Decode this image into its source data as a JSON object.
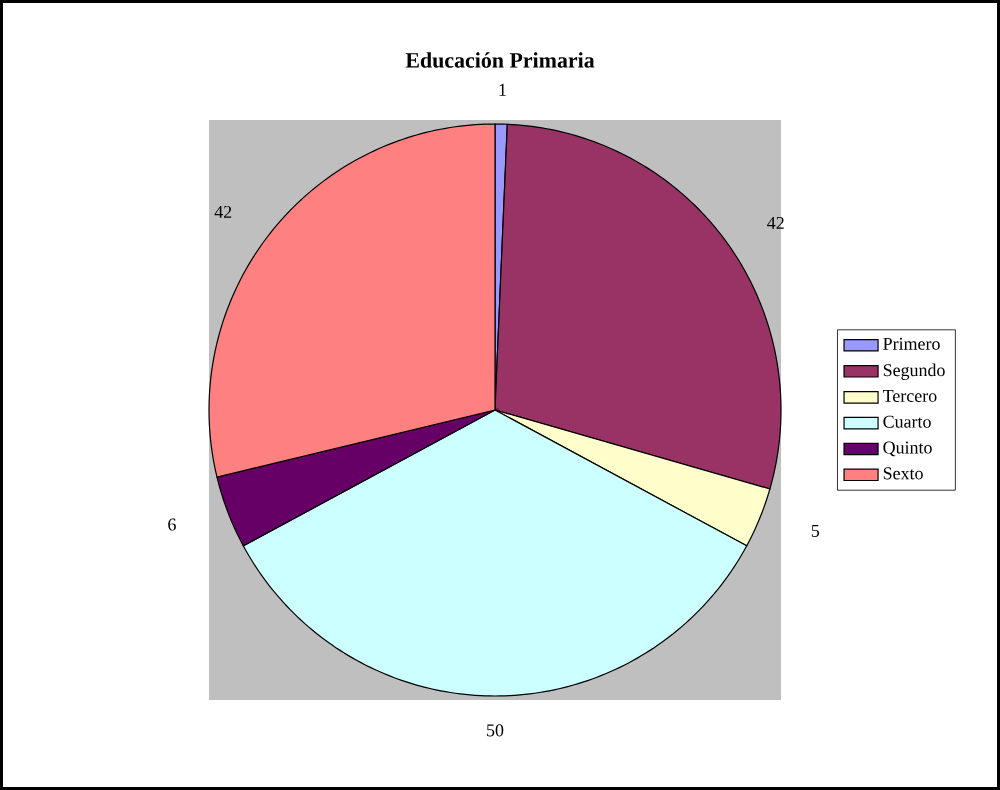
{
  "chart_data": {
    "type": "pie",
    "title": "Educación Primaria",
    "categories": [
      "Primero",
      "Segundo",
      "Tercero",
      "Cuarto",
      "Quinto",
      "Sexto"
    ],
    "values": [
      1,
      42,
      5,
      50,
      6,
      42
    ],
    "colors": [
      "#9999ff",
      "#993366",
      "#ffffcc",
      "#ccffff",
      "#660066",
      "#ff8080"
    ],
    "data_labels": true,
    "legend": "right"
  }
}
